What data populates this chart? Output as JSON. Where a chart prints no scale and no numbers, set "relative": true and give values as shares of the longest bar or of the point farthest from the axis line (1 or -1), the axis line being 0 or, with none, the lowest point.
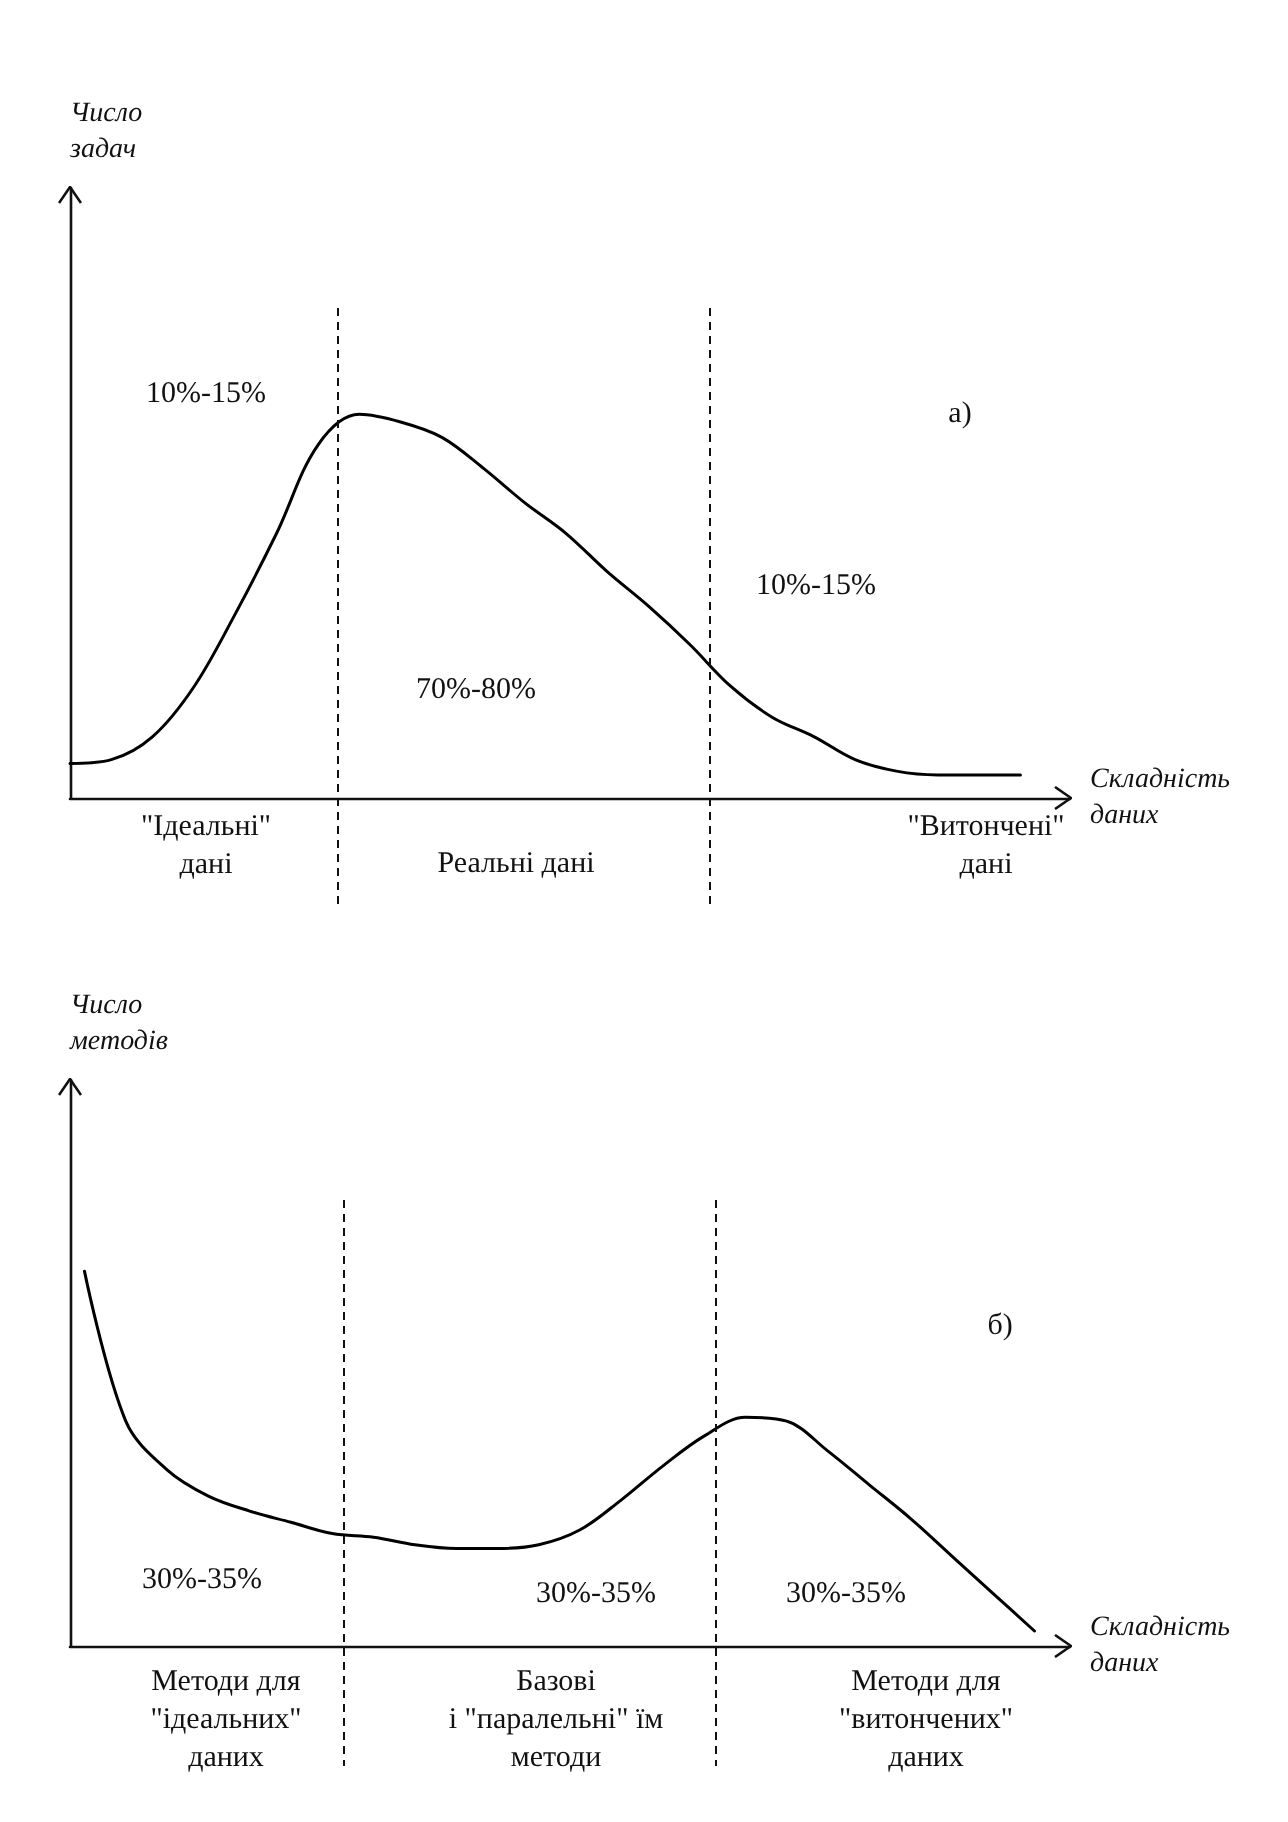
{
  "chart_data": [
    {
      "type": "line",
      "relative": true,
      "ylabel": "Число\nзадач",
      "xlabel": "Складність\nданих",
      "categories": [
        null,
        null,
        null,
        null,
        null,
        null,
        null,
        null,
        null,
        null,
        null,
        null,
        null,
        null,
        null,
        null,
        null,
        null,
        null,
        null,
        null,
        null,
        null,
        null
      ],
      "series": [
        {
          "color": "#000000",
          "values": [
            0.09,
            0.1,
            0.16,
            0.29,
            0.48,
            0.69,
            0.92,
            1.0,
            0.98,
            0.94,
            0.86,
            0.77,
            0.69,
            0.59,
            0.5,
            0.4,
            0.29,
            0.21,
            0.16,
            0.1,
            0.07,
            0.06,
            0.06,
            0.06
          ]
        }
      ],
      "tick_labels": false,
      "grid": false,
      "marker": "none",
      "line_style": "solid",
      "annotations": [
        "10%-15%",
        "а)",
        "10%-15%",
        "70%-80%",
        "\"Ідеальні\"\nдані",
        "Реальні дані",
        "\"Витончені\"\nдані"
      ]
    },
    {
      "type": "line",
      "relative": true,
      "ylabel": "Число\nметодів",
      "xlabel": "Складність\nданих",
      "categories": [
        null,
        null,
        null,
        null,
        null,
        null,
        null,
        null,
        null,
        null,
        null,
        null,
        null,
        null,
        null,
        null,
        null,
        null,
        null,
        null,
        null,
        null,
        null,
        null
      ],
      "series": [
        {
          "color": "#000000",
          "values": [
            1.0,
            0.6,
            0.47,
            0.4,
            0.36,
            0.33,
            0.3,
            0.29,
            0.27,
            0.26,
            0.26,
            0.27,
            0.31,
            0.39,
            0.48,
            0.56,
            0.61,
            0.6,
            0.52,
            0.43,
            0.34,
            0.24,
            0.14,
            0.04
          ]
        }
      ],
      "tick_labels": false,
      "grid": false,
      "marker": "none",
      "line_style": "solid",
      "annotations": [
        "30%-35%",
        "б)",
        "30%-35%",
        "30%-35%",
        "Методи для\n\"ідеальних\"\nданих",
        "Базові\nі \"паралельні\" їм\nметоди",
        "Методи для\n\"витончених\"\nданих"
      ]
    }
  ]
}
